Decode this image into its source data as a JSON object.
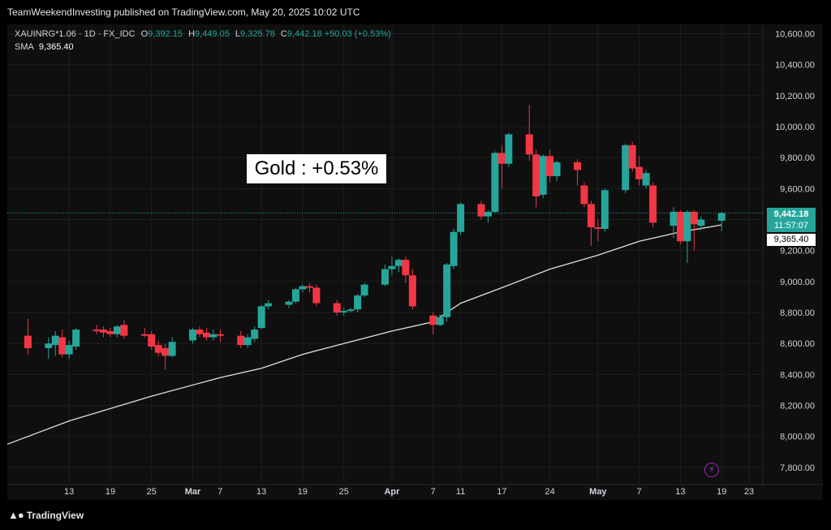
{
  "header": {
    "published": "TeamWeekendInvesting published on TradingView.com, May 20, 2025 10:02 UTC"
  },
  "legend": {
    "symbol": "XAUINRG*1.06 · 1D · FX_IDC",
    "open_label": "O",
    "open": "9,392.15",
    "high_label": "H",
    "high": "9,449.05",
    "low_label": "L",
    "low": "9,325.78",
    "close_label": "C",
    "close": "9,442.18",
    "change": "+50.03 (+0.53%)",
    "sma_label": "SMA",
    "sma_value": "9,365.40"
  },
  "annotation": {
    "text": "Gold : +0.53%"
  },
  "price_badge": {
    "price": "9,442.18",
    "countdown": "11:57:07"
  },
  "sma_badge": {
    "value": "9,365.40"
  },
  "brand": {
    "name": "TradingView"
  },
  "colors": {
    "up": "#26a69a",
    "down": "#f23645",
    "sma": "#e0e0e0",
    "grid": "#1e1e1e",
    "axis_text": "#d1d4dc",
    "background": "#0f0f0f"
  },
  "chart_data": {
    "type": "candlestick",
    "y_ticks": [
      "7,800.00",
      "8,000.00",
      "8,200.00",
      "8,400.00",
      "8,600.00",
      "8,800.00",
      "9,000.00",
      "9,200.00",
      "9,400.00",
      "9,600.00",
      "9,800.00",
      "10,000.00",
      "10,200.00",
      "10,400.00",
      "10,600.00"
    ],
    "ylim": [
      7700,
      10660
    ],
    "x_ticks": [
      {
        "label": "13",
        "date": "2025-02-13"
      },
      {
        "label": "19",
        "date": "2025-02-19"
      },
      {
        "label": "25",
        "date": "2025-02-25"
      },
      {
        "label": "Mar",
        "date": "2025-03-03"
      },
      {
        "label": "7",
        "date": "2025-03-07"
      },
      {
        "label": "13",
        "date": "2025-03-13"
      },
      {
        "label": "19",
        "date": "2025-03-19"
      },
      {
        "label": "25",
        "date": "2025-03-25"
      },
      {
        "label": "Apr",
        "date": "2025-04-01"
      },
      {
        "label": "7",
        "date": "2025-04-07"
      },
      {
        "label": "11",
        "date": "2025-04-11"
      },
      {
        "label": "17",
        "date": "2025-04-17"
      },
      {
        "label": "24",
        "date": "2025-04-24"
      },
      {
        "label": "May",
        "date": "2025-05-01"
      },
      {
        "label": "7",
        "date": "2025-05-07"
      },
      {
        "label": "13",
        "date": "2025-05-13"
      },
      {
        "label": "19",
        "date": "2025-05-19"
      },
      {
        "label": "23",
        "date": "2025-05-23"
      }
    ],
    "candles": [
      {
        "date": "2025-02-07",
        "o": 8650,
        "h": 8760,
        "l": 8530,
        "c": 8570
      },
      {
        "date": "2025-02-10",
        "o": 8570,
        "h": 8640,
        "l": 8500,
        "c": 8600
      },
      {
        "date": "2025-02-11",
        "o": 8590,
        "h": 8680,
        "l": 8520,
        "c": 8650
      },
      {
        "date": "2025-02-12",
        "o": 8640,
        "h": 8690,
        "l": 8510,
        "c": 8530
      },
      {
        "date": "2025-02-13",
        "o": 8530,
        "h": 8620,
        "l": 8500,
        "c": 8590
      },
      {
        "date": "2025-02-14",
        "o": 8580,
        "h": 8700,
        "l": 8560,
        "c": 8690
      },
      {
        "date": "2025-02-17",
        "o": 8690,
        "h": 8720,
        "l": 8660,
        "c": 8680
      },
      {
        "date": "2025-02-18",
        "o": 8690,
        "h": 8710,
        "l": 8640,
        "c": 8670
      },
      {
        "date": "2025-02-19",
        "o": 8680,
        "h": 8700,
        "l": 8640,
        "c": 8660
      },
      {
        "date": "2025-02-20",
        "o": 8660,
        "h": 8720,
        "l": 8640,
        "c": 8710
      },
      {
        "date": "2025-02-21",
        "o": 8720,
        "h": 8750,
        "l": 8630,
        "c": 8650
      },
      {
        "date": "2025-02-24",
        "o": 8660,
        "h": 8700,
        "l": 8640,
        "c": 8650
      },
      {
        "date": "2025-02-25",
        "o": 8660,
        "h": 8680,
        "l": 8560,
        "c": 8580
      },
      {
        "date": "2025-02-26",
        "o": 8590,
        "h": 8620,
        "l": 8520,
        "c": 8540
      },
      {
        "date": "2025-02-27",
        "o": 8570,
        "h": 8600,
        "l": 8430,
        "c": 8520
      },
      {
        "date": "2025-02-28",
        "o": 8520,
        "h": 8640,
        "l": 8510,
        "c": 8610
      },
      {
        "date": "2025-03-03",
        "o": 8620,
        "h": 8700,
        "l": 8600,
        "c": 8690
      },
      {
        "date": "2025-03-04",
        "o": 8690,
        "h": 8710,
        "l": 8640,
        "c": 8660
      },
      {
        "date": "2025-03-05",
        "o": 8670,
        "h": 8700,
        "l": 8620,
        "c": 8640
      },
      {
        "date": "2025-03-06",
        "o": 8640,
        "h": 8690,
        "l": 8620,
        "c": 8660
      },
      {
        "date": "2025-03-07",
        "o": 8660,
        "h": 8690,
        "l": 8610,
        "c": 8650
      },
      {
        "date": "2025-03-10",
        "o": 8650,
        "h": 8680,
        "l": 8570,
        "c": 8590
      },
      {
        "date": "2025-03-11",
        "o": 8590,
        "h": 8660,
        "l": 8570,
        "c": 8640
      },
      {
        "date": "2025-03-12",
        "o": 8630,
        "h": 8710,
        "l": 8610,
        "c": 8690
      },
      {
        "date": "2025-03-13",
        "o": 8700,
        "h": 8850,
        "l": 8690,
        "c": 8840
      },
      {
        "date": "2025-03-14",
        "o": 8840,
        "h": 8880,
        "l": 8820,
        "c": 8860
      },
      {
        "date": "2025-03-17",
        "o": 8850,
        "h": 8880,
        "l": 8830,
        "c": 8870
      },
      {
        "date": "2025-03-18",
        "o": 8870,
        "h": 8960,
        "l": 8860,
        "c": 8950
      },
      {
        "date": "2025-03-19",
        "o": 8950,
        "h": 8980,
        "l": 8930,
        "c": 8970
      },
      {
        "date": "2025-03-20",
        "o": 8970,
        "h": 8990,
        "l": 8930,
        "c": 8960
      },
      {
        "date": "2025-03-21",
        "o": 8960,
        "h": 8980,
        "l": 8840,
        "c": 8860
      },
      {
        "date": "2025-03-24",
        "o": 8860,
        "h": 8880,
        "l": 8780,
        "c": 8800
      },
      {
        "date": "2025-03-25",
        "o": 8800,
        "h": 8830,
        "l": 8780,
        "c": 8810
      },
      {
        "date": "2025-03-26",
        "o": 8810,
        "h": 8830,
        "l": 8800,
        "c": 8820
      },
      {
        "date": "2025-03-27",
        "o": 8820,
        "h": 8920,
        "l": 8800,
        "c": 8910
      },
      {
        "date": "2025-03-28",
        "o": 8910,
        "h": 8990,
        "l": 8900,
        "c": 8980
      },
      {
        "date": "2025-03-31",
        "o": 8980,
        "h": 9110,
        "l": 8970,
        "c": 9080
      },
      {
        "date": "2025-04-01",
        "o": 9080,
        "h": 9160,
        "l": 9040,
        "c": 9100
      },
      {
        "date": "2025-04-02",
        "o": 9100,
        "h": 9150,
        "l": 9060,
        "c": 9140
      },
      {
        "date": "2025-04-03",
        "o": 9140,
        "h": 9160,
        "l": 8990,
        "c": 9040
      },
      {
        "date": "2025-04-04",
        "o": 9040,
        "h": 9080,
        "l": 8820,
        "c": 8840
      },
      {
        "date": "2025-04-07",
        "o": 8780,
        "h": 8800,
        "l": 8660,
        "c": 8720
      },
      {
        "date": "2025-04-08",
        "o": 8720,
        "h": 8790,
        "l": 8710,
        "c": 8770
      },
      {
        "date": "2025-04-09",
        "o": 8770,
        "h": 9120,
        "l": 8740,
        "c": 9110
      },
      {
        "date": "2025-04-10",
        "o": 9100,
        "h": 9340,
        "l": 9080,
        "c": 9320
      },
      {
        "date": "2025-04-11",
        "o": 9320,
        "h": 9510,
        "l": 9300,
        "c": 9500
      },
      {
        "date": "2025-04-14",
        "o": 9500,
        "h": 9520,
        "l": 9400,
        "c": 9420
      },
      {
        "date": "2025-04-15",
        "o": 9420,
        "h": 9460,
        "l": 9380,
        "c": 9450
      },
      {
        "date": "2025-04-16",
        "o": 9450,
        "h": 9840,
        "l": 9440,
        "c": 9830
      },
      {
        "date": "2025-04-17",
        "o": 9830,
        "h": 9880,
        "l": 9600,
        "c": 9760
      },
      {
        "date": "2025-04-18",
        "o": 9760,
        "h": 9960,
        "l": 9740,
        "c": 9950
      },
      {
        "date": "2025-04-21",
        "o": 9950,
        "h": 10140,
        "l": 9780,
        "c": 9820
      },
      {
        "date": "2025-04-22",
        "o": 9820,
        "h": 9850,
        "l": 9480,
        "c": 9550
      },
      {
        "date": "2025-04-23",
        "o": 9560,
        "h": 9820,
        "l": 9540,
        "c": 9810
      },
      {
        "date": "2025-04-24",
        "o": 9810,
        "h": 9850,
        "l": 9640,
        "c": 9680
      },
      {
        "date": "2025-04-25",
        "o": 9680,
        "h": 9780,
        "l": 9650,
        "c": 9770
      },
      {
        "date": "2025-04-28",
        "o": 9770,
        "h": 9790,
        "l": 9620,
        "c": 9720
      },
      {
        "date": "2025-04-29",
        "o": 9620,
        "h": 9640,
        "l": 9480,
        "c": 9500
      },
      {
        "date": "2025-04-30",
        "o": 9500,
        "h": 9520,
        "l": 9230,
        "c": 9350
      },
      {
        "date": "2025-05-01",
        "o": 9350,
        "h": 9400,
        "l": 9260,
        "c": 9340
      },
      {
        "date": "2025-05-02",
        "o": 9340,
        "h": 9600,
        "l": 9320,
        "c": 9590
      },
      {
        "date": "2025-05-05",
        "o": 9590,
        "h": 9890,
        "l": 9570,
        "c": 9880
      },
      {
        "date": "2025-05-06",
        "o": 9880,
        "h": 9900,
        "l": 9710,
        "c": 9730
      },
      {
        "date": "2025-05-07",
        "o": 9740,
        "h": 9810,
        "l": 9620,
        "c": 9660
      },
      {
        "date": "2025-05-08",
        "o": 9620,
        "h": 9720,
        "l": 9600,
        "c": 9700
      },
      {
        "date": "2025-05-09",
        "o": 9620,
        "h": 9640,
        "l": 9350,
        "c": 9380
      },
      {
        "date": "2025-05-12",
        "o": 9360,
        "h": 9480,
        "l": 9280,
        "c": 9450
      },
      {
        "date": "2025-05-13",
        "o": 9450,
        "h": 9460,
        "l": 9240,
        "c": 9260
      },
      {
        "date": "2025-05-14",
        "o": 9260,
        "h": 9460,
        "l": 9120,
        "c": 9450
      },
      {
        "date": "2025-05-15",
        "o": 9450,
        "h": 9460,
        "l": 9200,
        "c": 9370
      },
      {
        "date": "2025-05-16",
        "o": 9360,
        "h": 9420,
        "l": 9330,
        "c": 9400
      },
      {
        "date": "2025-05-19",
        "o": 9392.15,
        "h": 9449.05,
        "l": 9325.78,
        "c": 9442.18
      }
    ],
    "sma": [
      {
        "date": "2025-02-04",
        "v": 7950
      },
      {
        "date": "2025-02-13",
        "v": 8100
      },
      {
        "date": "2025-02-25",
        "v": 8260
      },
      {
        "date": "2025-03-07",
        "v": 8380
      },
      {
        "date": "2025-03-13",
        "v": 8440
      },
      {
        "date": "2025-03-19",
        "v": 8530
      },
      {
        "date": "2025-03-25",
        "v": 8600
      },
      {
        "date": "2025-04-01",
        "v": 8680
      },
      {
        "date": "2025-04-07",
        "v": 8740
      },
      {
        "date": "2025-04-11",
        "v": 8860
      },
      {
        "date": "2025-04-17",
        "v": 8960
      },
      {
        "date": "2025-04-24",
        "v": 9080
      },
      {
        "date": "2025-05-01",
        "v": 9170
      },
      {
        "date": "2025-05-07",
        "v": 9260
      },
      {
        "date": "2025-05-13",
        "v": 9320
      },
      {
        "date": "2025-05-19",
        "v": 9365.4
      }
    ],
    "last_price_line": 9442.18
  }
}
